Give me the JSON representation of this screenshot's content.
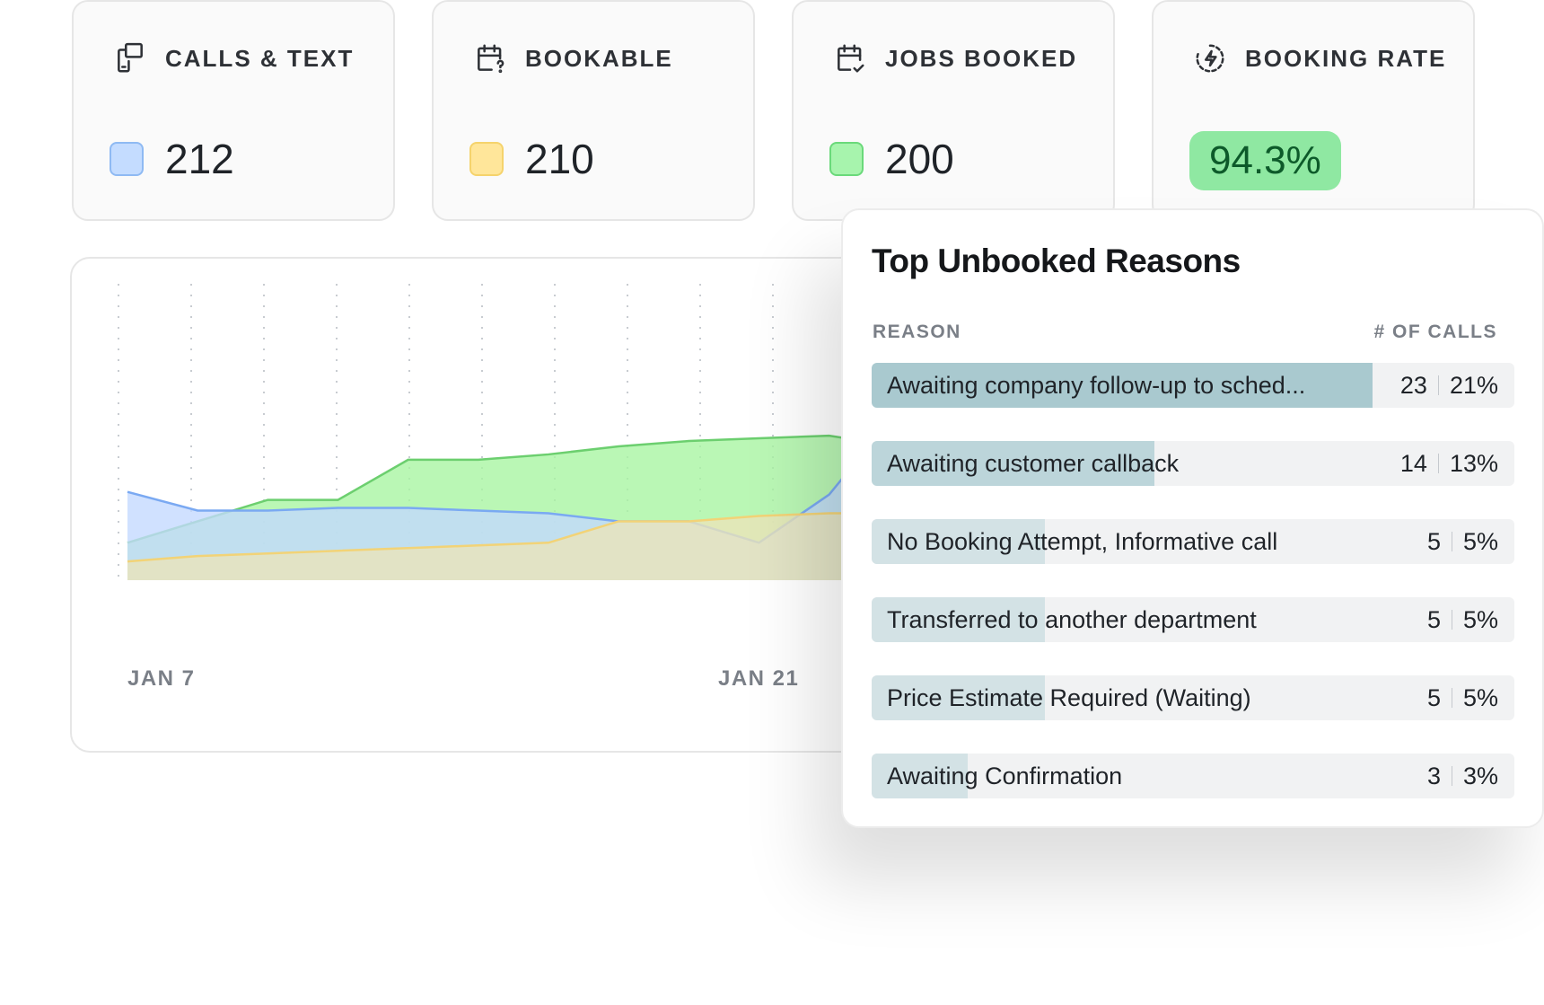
{
  "stats": [
    {
      "title": "CALLS & TEXT",
      "value": "212",
      "icon": "devices-icon",
      "fill": "#c4dcff",
      "border": "#8fbaf3"
    },
    {
      "title": "BOOKABLE",
      "value": "210",
      "icon": "calendar-question-icon",
      "fill": "#ffe69a",
      "border": "#f5d36c"
    },
    {
      "title": "JOBS BOOKED",
      "value": "200",
      "icon": "calendar-check-icon",
      "fill": "#a7f4ad",
      "border": "#6ad97a"
    },
    {
      "title": "BOOKING RATE",
      "value": "94.3%",
      "icon": "lightning-circle-icon"
    }
  ],
  "chart_data": {
    "type": "area",
    "x_ticks": [
      "JAN 7",
      "JAN 21"
    ],
    "ylim": [
      0,
      100
    ],
    "grid": "vertical-dotted",
    "series": [
      {
        "color": "#6ccf6f",
        "fill": "#a7f5a0",
        "values": [
          14,
          22,
          30,
          30,
          45,
          45,
          47,
          50,
          52,
          53,
          54,
          50,
          50
        ]
      },
      {
        "color": "#7aa9f2",
        "fill": "#c3d8ff",
        "values": [
          33,
          26,
          26,
          27,
          27,
          26,
          25,
          22,
          22,
          14,
          32,
          64,
          64
        ]
      },
      {
        "color": "#f2d377",
        "fill": "#ece4b8",
        "values": [
          7,
          9,
          10,
          11,
          12,
          13,
          14,
          22,
          22,
          24,
          25,
          25,
          25
        ]
      }
    ]
  },
  "panel": {
    "title": "Top Unbooked Reasons",
    "col_reason": "REASON",
    "col_calls": "# OF CALLS",
    "rows": [
      {
        "label": "Awaiting company follow-up to sched...",
        "count": "23",
        "pct": "21%",
        "fill": 0.78,
        "color": "#a9c9cf"
      },
      {
        "label": "Awaiting customer callback",
        "count": "14",
        "pct": "13%",
        "fill": 0.44,
        "color": "#bcd5da"
      },
      {
        "label": "No Booking Attempt, Informative call",
        "count": "5",
        "pct": "5%",
        "fill": 0.27,
        "color": "#d3e2e5"
      },
      {
        "label": "Transferred to another department",
        "count": "5",
        "pct": "5%",
        "fill": 0.27,
        "color": "#d3e2e5"
      },
      {
        "label": "Price Estimate Required (Waiting)",
        "count": "5",
        "pct": "5%",
        "fill": 0.27,
        "color": "#d3e2e5"
      },
      {
        "label": "Awaiting Confirmation",
        "count": "3",
        "pct": "3%",
        "fill": 0.15,
        "color": "#d3e2e5"
      }
    ]
  }
}
